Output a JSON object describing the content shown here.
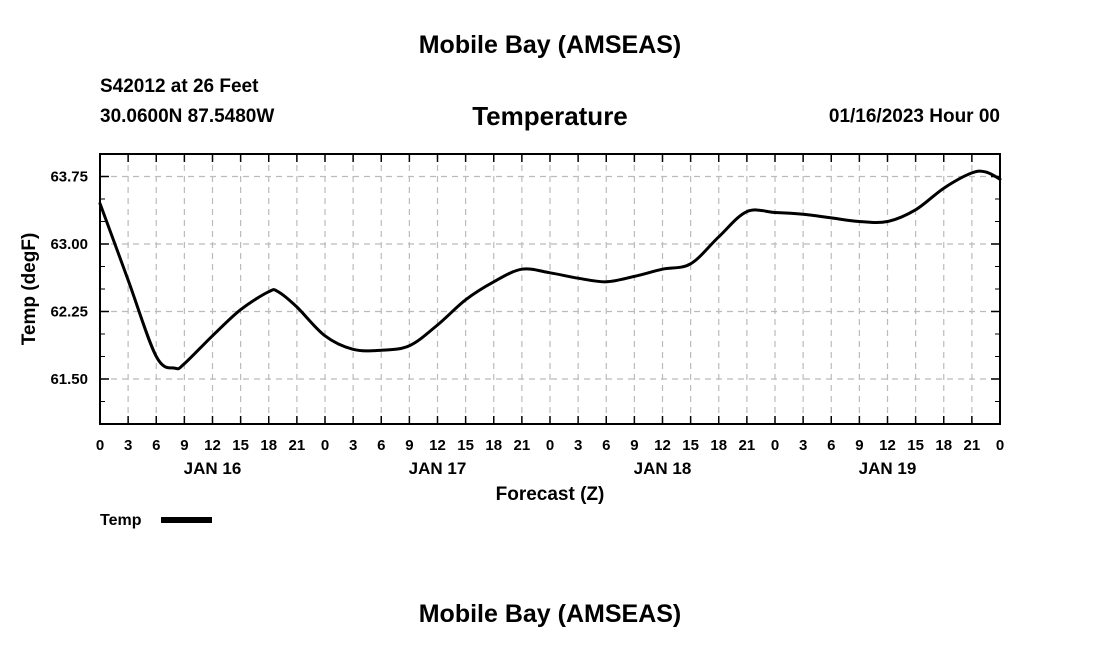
{
  "header": {
    "title": "Mobile Bay (AMSEAS)",
    "station": "S42012 at 26 Feet",
    "coords": "30.0600N  87.5480W",
    "chart_title": "Temperature",
    "datetime": "01/16/2023 Hour 00"
  },
  "footer": {
    "title": "Mobile Bay (AMSEAS)"
  },
  "chart_data": {
    "type": "line",
    "title": "Temperature",
    "xlabel": "Forecast (Z)",
    "ylabel": "Temp (degF)",
    "xlim": [
      0,
      96
    ],
    "ylim": [
      61.0,
      64.0
    ],
    "yticks": [
      61.5,
      62.25,
      63.0,
      63.75
    ],
    "ytick_labels": [
      "61.50",
      "62.25",
      "63.00",
      "63.75"
    ],
    "grid": true,
    "x_tick_step_hours": 3,
    "x_tick_labels": [
      "0",
      "3",
      "6",
      "9",
      "12",
      "15",
      "18",
      "21",
      "0",
      "3",
      "6",
      "9",
      "12",
      "15",
      "18",
      "21",
      "0",
      "3",
      "6",
      "9",
      "12",
      "15",
      "18",
      "21",
      "0",
      "3",
      "6",
      "9",
      "12",
      "15",
      "18",
      "21",
      "0"
    ],
    "day_labels": [
      {
        "label": "JAN 16",
        "hour": 12
      },
      {
        "label": "JAN 17",
        "hour": 36
      },
      {
        "label": "JAN 18",
        "hour": 60
      },
      {
        "label": "JAN 19",
        "hour": 84
      }
    ],
    "legend": {
      "label": "Temp",
      "position": "bottom-left"
    },
    "colors": {
      "line": "#000000",
      "grid": "#bbbbbb"
    },
    "series": [
      {
        "name": "Temp",
        "x": [
          0,
          3,
          6,
          8,
          9,
          12,
          15,
          18,
          19,
          21,
          24,
          27,
          30,
          33,
          36,
          39,
          42,
          45,
          48,
          51,
          54,
          57,
          60,
          63,
          66,
          69,
          72,
          75,
          78,
          81,
          84,
          87,
          90,
          93,
          94.5,
          96
        ],
        "y": [
          63.45,
          62.6,
          61.75,
          61.62,
          61.67,
          61.98,
          62.27,
          62.47,
          62.47,
          62.3,
          61.98,
          61.83,
          61.82,
          61.87,
          62.1,
          62.38,
          62.58,
          62.72,
          62.68,
          62.62,
          62.58,
          62.64,
          62.72,
          62.78,
          63.08,
          63.36,
          63.35,
          63.33,
          63.29,
          63.25,
          63.25,
          63.38,
          63.62,
          63.79,
          63.8,
          63.72
        ]
      }
    ]
  }
}
